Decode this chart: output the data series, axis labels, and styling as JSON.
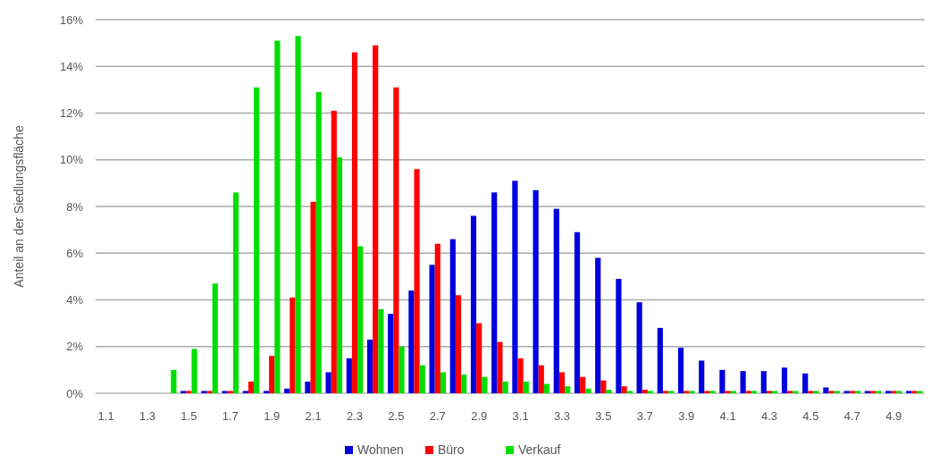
{
  "chart_data": {
    "type": "bar",
    "ylabel": "Anteil an der Siedlungsfläche",
    "categories": [
      "1.1",
      null,
      "1.3",
      null,
      "1.5",
      null,
      "1.7",
      null,
      "1.9",
      null,
      "2.1",
      null,
      "2.3",
      null,
      "2.5",
      null,
      "2.7",
      null,
      "2.9",
      null,
      "3.1",
      null,
      "3.3",
      null,
      "3.5",
      null,
      "3.7",
      null,
      "3.9",
      null,
      "4.1",
      null,
      "4.3",
      null,
      "4.5",
      null,
      "4.7",
      null,
      "4.9",
      null
    ],
    "series": [
      {
        "name": "Wohnen",
        "color": "#0000dd",
        "values": [
          0,
          0,
          0,
          0,
          0.1,
          0.1,
          0.1,
          0.1,
          0.1,
          0.2,
          0.5,
          0.9,
          1.5,
          2.3,
          3.4,
          4.4,
          5.5,
          6.6,
          7.6,
          8.6,
          9.1,
          8.7,
          7.9,
          6.9,
          5.8,
          4.9,
          3.9,
          2.8,
          1.95,
          1.4,
          1.0,
          0.95,
          0.95,
          1.1,
          0.85,
          0.25,
          0.1,
          0.1,
          0.1,
          0.1
        ]
      },
      {
        "name": "Büro",
        "color": "#ff0000",
        "values": [
          0,
          0,
          0,
          0,
          0.1,
          0.1,
          0.1,
          0.5,
          1.6,
          4.1,
          8.2,
          12.1,
          14.6,
          14.9,
          13.1,
          9.6,
          6.4,
          4.2,
          3.0,
          2.2,
          1.5,
          1.2,
          0.9,
          0.7,
          0.55,
          0.3,
          0.15,
          0.1,
          0.1,
          0.1,
          0.1,
          0.1,
          0.1,
          0.1,
          0.1,
          0.1,
          0.1,
          0.1,
          0.1,
          0.1
        ]
      },
      {
        "name": "Verkauf",
        "color": "#00dd00",
        "values": [
          0,
          0,
          0,
          1.0,
          1.9,
          4.7,
          8.6,
          13.1,
          15.1,
          15.3,
          12.9,
          10.1,
          6.3,
          3.6,
          2.0,
          1.2,
          0.9,
          0.8,
          0.7,
          0.5,
          0.5,
          0.4,
          0.3,
          0.2,
          0.15,
          0.1,
          0.1,
          0.1,
          0.1,
          0.1,
          0.1,
          0.1,
          0.1,
          0.1,
          0.1,
          0.1,
          0.1,
          0.1,
          0.1,
          0.1
        ]
      }
    ],
    "ylim": [
      0,
      16
    ],
    "yticks": [
      {
        "value": 0,
        "label": "0%"
      },
      {
        "value": 2,
        "label": "2%"
      },
      {
        "value": 4,
        "label": "4%"
      },
      {
        "value": 6,
        "label": "6%"
      },
      {
        "value": 8,
        "label": "8%"
      },
      {
        "value": 10,
        "label": "10%"
      },
      {
        "value": 12,
        "label": "12%"
      },
      {
        "value": 14,
        "label": "14%"
      },
      {
        "value": 16,
        "label": "16%"
      }
    ],
    "grid": "y",
    "legend": "bottom"
  }
}
